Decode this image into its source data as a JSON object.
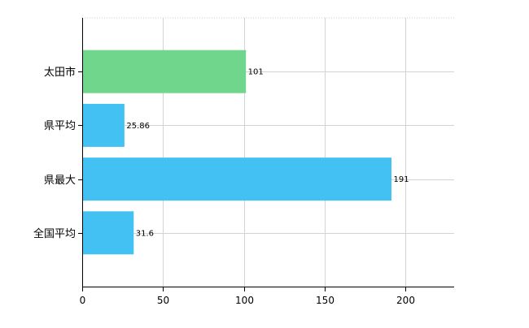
{
  "chart_data": {
    "type": "bar",
    "orientation": "horizontal",
    "title": "",
    "xlabel": "",
    "ylabel": "",
    "categories": [
      "太田市",
      "県平均",
      "県最大",
      "全国平均"
    ],
    "values": [
      101,
      25.86,
      191,
      31.6
    ],
    "value_labels": [
      "101",
      "25.86",
      "191",
      "31.6"
    ],
    "colors": [
      "#70d68c",
      "#42c1f2",
      "#42c1f2",
      "#42c1f2"
    ],
    "xlim": [
      0,
      230
    ],
    "xticks": [
      0,
      50,
      100,
      150,
      200
    ],
    "xtick_labels": [
      "0",
      "50",
      "100",
      "150",
      "200"
    ],
    "grid": true,
    "legend": "none"
  }
}
